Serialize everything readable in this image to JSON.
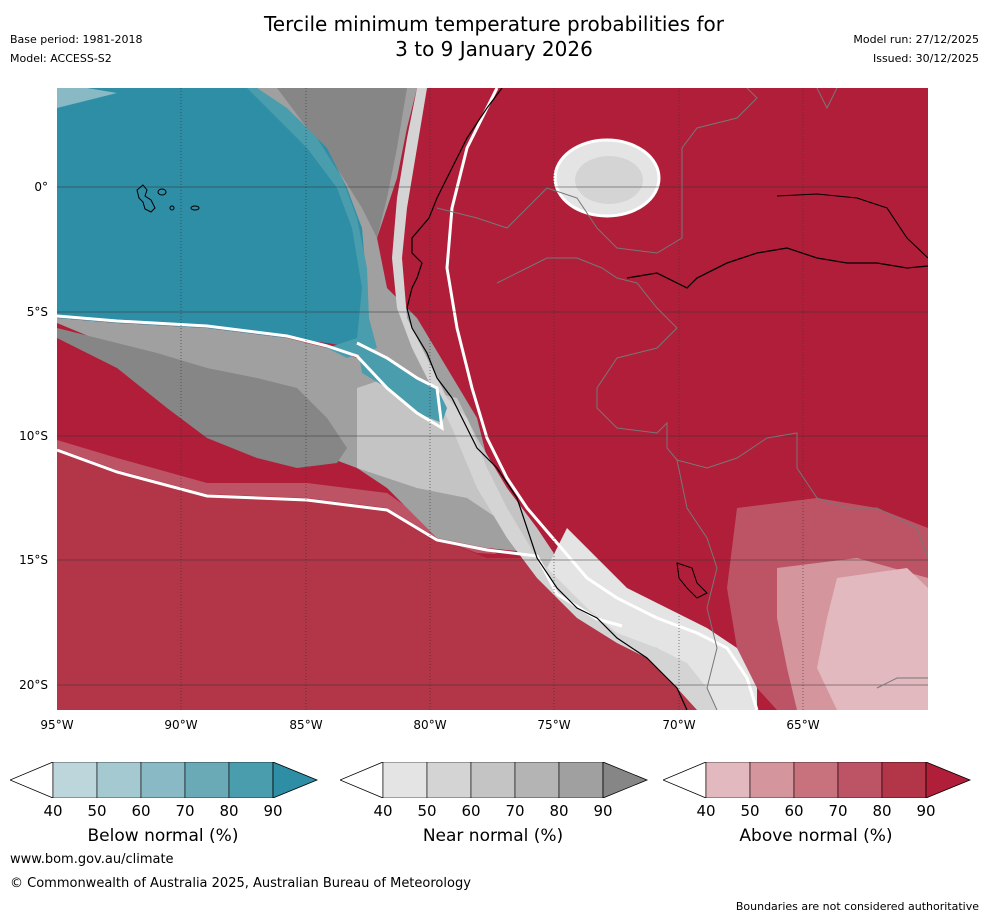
{
  "title": {
    "line1": "Tercile minimum temperature probabilities for",
    "line2": "3 to 9 January 2026"
  },
  "meta": {
    "base_period": "Base period: 1981-2018",
    "model": "Model: ACCESS-S2",
    "model_run": "Model run: 27/12/2025",
    "issued": "Issued: 30/12/2025"
  },
  "map": {
    "lat_labels": [
      "0°",
      "5°S",
      "10°S",
      "15°S",
      "20°S"
    ],
    "lon_labels": [
      "95°W",
      "90°W",
      "85°W",
      "80°W",
      "75°W",
      "70°W",
      "65°W"
    ],
    "colors": {
      "below": [
        "#bcd6dc",
        "#a5c9d1",
        "#88b9c5",
        "#6aaab7",
        "#4a9dad",
        "#2e8ea5"
      ],
      "near": [
        "#e4e4e4",
        "#d4d4d4",
        "#c4c4c4",
        "#b4b4b4",
        "#a0a0a0",
        "#868686"
      ],
      "above": [
        "#e1b9be",
        "#d4959d",
        "#c8727e",
        "#bd5466",
        "#b23548",
        "#b01e3a"
      ]
    }
  },
  "colorbars": [
    {
      "title": "Below normal (%)",
      "ticks": [
        "40",
        "50",
        "60",
        "70",
        "80",
        "90"
      ],
      "palette": "below"
    },
    {
      "title": "Near normal (%)",
      "ticks": [
        "40",
        "50",
        "60",
        "70",
        "80",
        "90"
      ],
      "palette": "near"
    },
    {
      "title": "Above normal (%)",
      "ticks": [
        "40",
        "50",
        "60",
        "70",
        "80",
        "90"
      ],
      "palette": "above"
    }
  ],
  "footer": {
    "url": "www.bom.gov.au/climate",
    "copyright": "© Commonwealth of Australia 2025, Australian Bureau of Meteorology",
    "disclaimer": "Boundaries are not considered authoritative"
  }
}
